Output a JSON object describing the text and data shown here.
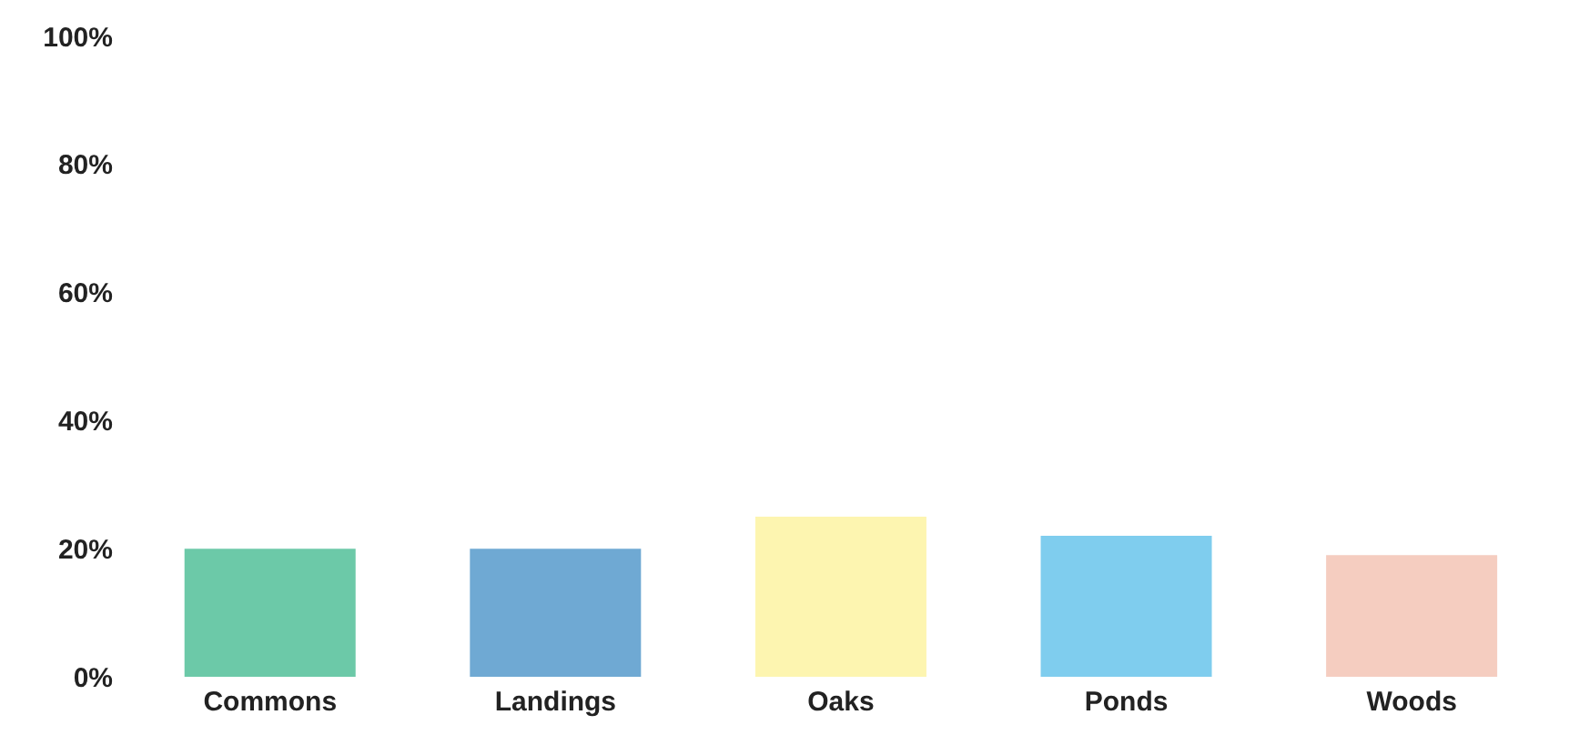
{
  "chart_data": {
    "type": "bar",
    "categories": [
      "Commons",
      "Landings",
      "Oaks",
      "Ponds",
      "Woods"
    ],
    "values": [
      20,
      20,
      25,
      22,
      19
    ],
    "colors": [
      "#6cc9a8",
      "#6fa9d3",
      "#fdf5b0",
      "#7fcdee",
      "#f5cdc0"
    ],
    "ylim": [
      0,
      100
    ],
    "yticks": [
      {
        "value": 0,
        "label": "0%"
      },
      {
        "value": 20,
        "label": "20%"
      },
      {
        "value": 40,
        "label": "40%"
      },
      {
        "value": 60,
        "label": "60%"
      },
      {
        "value": 80,
        "label": "80%"
      },
      {
        "value": 100,
        "label": "100%"
      }
    ],
    "grid": false
  }
}
